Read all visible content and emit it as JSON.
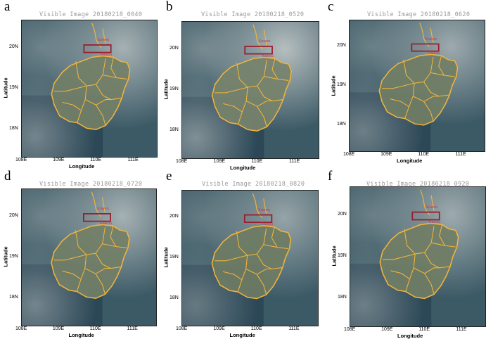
{
  "colors": {
    "ocean_dark": "#1f3a4a",
    "ocean_mid": "#3c5a66",
    "cloud": "#d8d8d4",
    "land": "#5a6a4e",
    "boundary": "#f2b43c",
    "box": "#9b1b2a"
  },
  "common": {
    "xlabel": "Longitude",
    "ylabel": "Latitude",
    "xticks": [
      "108E",
      "109E",
      "110E",
      "111E"
    ],
    "yticks": [
      "20N",
      "19N",
      "18N"
    ],
    "place1": "Xuwen",
    "place2": "Haikou"
  },
  "panels": [
    {
      "letter": "a",
      "title": "Visible Image 20180218_0040",
      "cloud_level": 0.55
    },
    {
      "letter": "b",
      "title": "Visible Image 20180218_0520",
      "cloud_level": 0.65
    },
    {
      "letter": "c",
      "title": "Visible Image 20180218_0620",
      "cloud_level": 0.5
    },
    {
      "letter": "d",
      "title": "Visible Image 20180218_0720",
      "cloud_level": 0.55
    },
    {
      "letter": "e",
      "title": "Visible Image 20180218_0820",
      "cloud_level": 0.45
    },
    {
      "letter": "f",
      "title": "Visible Image 20180218_0920",
      "cloud_level": 0.5
    }
  ]
}
